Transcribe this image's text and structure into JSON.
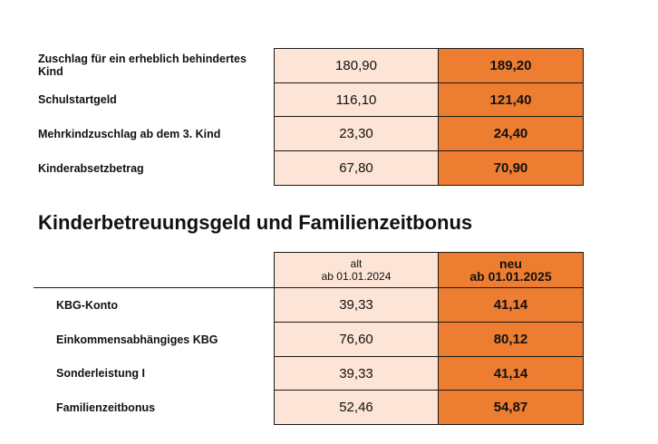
{
  "table1": {
    "rows": [
      {
        "label": "Zuschlag für ein erheblich behindertes Kind",
        "old": "180,90",
        "new": "189,20"
      },
      {
        "label": "Schulstartgeld",
        "old": "116,10",
        "new": "121,40"
      },
      {
        "label": "Mehrkindzuschlag ab dem 3. Kind",
        "old": "23,30",
        "new": "24,40"
      },
      {
        "label": "Kinderabsetzbetrag",
        "old": "67,80",
        "new": "70,90"
      }
    ]
  },
  "section2": {
    "title": "Kinderbetreuungsgeld und Familienzeitbonus",
    "header_old_line1": "alt",
    "header_old_line2": "ab 01.01.2024",
    "header_new_line1": "neu",
    "header_new_line2": "ab 01.01.2025",
    "rows": [
      {
        "label": "KBG-Konto",
        "old": "39,33",
        "new": "41,14"
      },
      {
        "label": "Einkommensabhängiges KBG",
        "old": "76,60",
        "new": "80,12"
      },
      {
        "label": "Sonderleistung I",
        "old": "39,33",
        "new": "41,14"
      },
      {
        "label": "Familienzeitbonus",
        "old": "52,46",
        "new": "54,87"
      }
    ]
  },
  "colors": {
    "old_cell": "#fce4d6",
    "new_cell": "#ed7d31",
    "border": "#1a1a1a"
  }
}
